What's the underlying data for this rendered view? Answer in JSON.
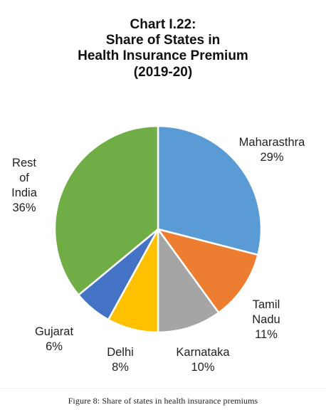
{
  "chart_data": {
    "type": "pie",
    "title_lines": [
      "Chart I.22:",
      "Share of States in",
      "Health Insurance Premium",
      "(2019-20)"
    ],
    "unit": "%",
    "slices": [
      {
        "name": "Maharasthra",
        "value": 29,
        "value_label": "29%",
        "label_lines": [
          "Maharasthra",
          "29%"
        ],
        "color": "#5B9BD5"
      },
      {
        "name": "Tamil Nadu",
        "value": 11,
        "value_label": "11%",
        "label_lines": [
          "Tamil",
          "Nadu",
          "11%"
        ],
        "color": "#ED7D31"
      },
      {
        "name": "Karnataka",
        "value": 10,
        "value_label": "10%",
        "label_lines": [
          "Karnataka",
          "10%"
        ],
        "color": "#A5A5A5"
      },
      {
        "name": "Delhi",
        "value": 8,
        "value_label": "8%",
        "label_lines": [
          "Delhi",
          "8%"
        ],
        "color": "#FFC000"
      },
      {
        "name": "Gujarat",
        "value": 6,
        "value_label": "6%",
        "label_lines": [
          "Gujarat",
          "6%"
        ],
        "color": "#4472C4"
      },
      {
        "name": "Rest of India",
        "value": 36,
        "value_label": "36%",
        "label_lines": [
          "Rest",
          "of",
          "India",
          "36%"
        ],
        "color": "#70AD47"
      }
    ]
  },
  "caption": "Figure 8: Share of states in health insurance premiums"
}
